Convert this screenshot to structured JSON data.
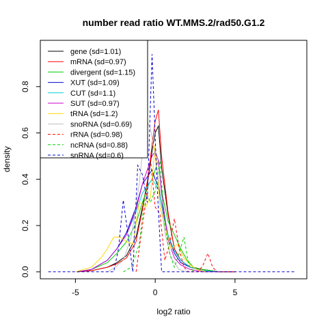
{
  "chart_data": {
    "type": "line",
    "title": "number read ratio WT.MMS.2/rad50.G1.2",
    "xlabel": "log2 ratio",
    "ylabel": "density",
    "xlim": [
      -7.2,
      9.5
    ],
    "ylim": [
      -0.03,
      1.0
    ],
    "xticks": [
      -5,
      0,
      5
    ],
    "yticks": [
      0.0,
      0.2,
      0.4,
      0.6,
      0.8
    ],
    "xtick_labels": [
      "-5",
      "0",
      "5"
    ],
    "ytick_labels": [
      "0.0",
      "0.2",
      "0.4",
      "0.6",
      "0.8"
    ],
    "grid": false,
    "legend_position": "top-left",
    "series": [
      {
        "name": "gene (sd=1.01)",
        "color": "#000000",
        "dash": "solid",
        "x": [
          -4.9,
          -4.0,
          -3.0,
          -2.4,
          -1.8,
          -1.2,
          -0.8,
          -0.4,
          -0.2,
          0.0,
          0.2,
          0.4,
          0.8,
          1.2,
          1.6,
          2.2,
          3.0,
          4.0,
          5.0
        ],
        "y": [
          0.0,
          0.005,
          0.02,
          0.04,
          0.07,
          0.15,
          0.28,
          0.42,
          0.52,
          0.6,
          0.63,
          0.45,
          0.25,
          0.1,
          0.05,
          0.02,
          0.01,
          0.0,
          0.0
        ]
      },
      {
        "name": "mRNA (sd=0.97)",
        "color": "#ff0000",
        "dash": "solid",
        "x": [
          -4.9,
          -4.0,
          -3.0,
          -2.4,
          -1.8,
          -1.2,
          -0.8,
          -0.4,
          -0.2,
          0.0,
          0.2,
          0.4,
          0.8,
          1.2,
          1.6,
          2.2,
          3.0,
          4.0,
          5.0
        ],
        "y": [
          0.0,
          0.005,
          0.02,
          0.035,
          0.06,
          0.13,
          0.27,
          0.43,
          0.55,
          0.65,
          0.7,
          0.5,
          0.26,
          0.1,
          0.05,
          0.02,
          0.01,
          0.0,
          0.0
        ]
      },
      {
        "name": "divergent (sd=1.15)",
        "color": "#00cd00",
        "dash": "solid",
        "x": [
          -4.9,
          -4.0,
          -3.0,
          -2.4,
          -1.8,
          -1.2,
          -0.8,
          -0.4,
          -0.2,
          0.0,
          0.2,
          0.4,
          0.8,
          1.2,
          1.6,
          2.0,
          2.4,
          3.0,
          4.0
        ],
        "y": [
          0.0,
          0.01,
          0.04,
          0.08,
          0.13,
          0.21,
          0.3,
          0.38,
          0.4,
          0.44,
          0.48,
          0.35,
          0.22,
          0.16,
          0.1,
          0.05,
          0.02,
          0.01,
          0.0
        ]
      },
      {
        "name": "XUT (sd=1.09)",
        "color": "#0000cd",
        "dash": "solid",
        "x": [
          -4.9,
          -4.0,
          -3.0,
          -2.4,
          -1.8,
          -1.2,
          -0.8,
          -0.4,
          -0.2,
          0.0,
          0.2,
          0.4,
          0.8,
          1.2,
          1.6,
          2.2,
          3.0,
          4.0
        ],
        "y": [
          0.0,
          0.01,
          0.05,
          0.1,
          0.17,
          0.28,
          0.38,
          0.42,
          0.44,
          0.4,
          0.37,
          0.3,
          0.16,
          0.08,
          0.04,
          0.02,
          0.005,
          0.0
        ]
      },
      {
        "name": "CUT (sd=1.1)",
        "color": "#00cdcd",
        "dash": "solid",
        "x": [
          -4.9,
          -4.0,
          -3.0,
          -2.4,
          -1.8,
          -1.2,
          -0.8,
          -0.4,
          -0.2,
          0.0,
          0.2,
          0.4,
          0.8,
          1.2,
          1.6,
          2.2,
          3.0,
          4.0
        ],
        "y": [
          0.0,
          0.01,
          0.05,
          0.1,
          0.16,
          0.26,
          0.34,
          0.38,
          0.4,
          0.38,
          0.36,
          0.28,
          0.16,
          0.09,
          0.05,
          0.02,
          0.005,
          0.0
        ]
      },
      {
        "name": "SUT (sd=0.97)",
        "color": "#cd00cd",
        "dash": "solid",
        "x": [
          -4.9,
          -4.0,
          -3.0,
          -2.4,
          -1.8,
          -1.2,
          -0.8,
          -0.4,
          -0.2,
          0.0,
          0.2,
          0.4,
          0.8,
          1.2,
          1.6,
          2.2,
          3.0,
          4.0
        ],
        "y": [
          0.0,
          0.01,
          0.05,
          0.1,
          0.16,
          0.27,
          0.38,
          0.46,
          0.5,
          0.52,
          0.48,
          0.34,
          0.14,
          0.06,
          0.03,
          0.01,
          0.0,
          0.0
        ]
      },
      {
        "name": "tRNA (sd=1.2)",
        "color": "#ffd700",
        "dash": "solid",
        "x": [
          -5.0,
          -4.0,
          -3.4,
          -3.0,
          -2.6,
          -2.2,
          -1.8,
          -1.4,
          -1.0,
          -0.6,
          -0.3,
          0.0,
          0.3,
          0.6,
          1.0,
          1.4,
          1.8,
          2.2,
          2.6,
          3.2
        ],
        "y": [
          0.0,
          0.02,
          0.06,
          0.1,
          0.15,
          0.15,
          0.13,
          0.12,
          0.3,
          0.28,
          0.32,
          0.55,
          0.28,
          0.2,
          0.1,
          0.12,
          0.06,
          0.03,
          0.01,
          0.0
        ]
      },
      {
        "name": "snoRNA (sd=0.69)",
        "color": "#bebebe",
        "dash": "solid",
        "x": [
          -3.0,
          -2.5,
          -2.0,
          -1.5,
          -1.0,
          -0.6,
          -0.3,
          0.0,
          0.3,
          0.6,
          1.0,
          1.5,
          2.0
        ],
        "y": [
          0.0,
          0.02,
          0.05,
          0.15,
          0.38,
          0.66,
          0.62,
          0.5,
          0.35,
          0.17,
          0.06,
          0.01,
          0.0
        ]
      },
      {
        "name": "rRNA (sd=0.98)",
        "color": "#ff0000",
        "dash": "dashed",
        "x": [
          -1.2,
          -0.9,
          -0.6,
          -0.3,
          0.0,
          0.3,
          0.6,
          0.9,
          1.2,
          1.5,
          1.8,
          2.1,
          2.4,
          2.7,
          3.0,
          3.3,
          3.6,
          3.9
        ],
        "y": [
          0.0,
          0.15,
          0.3,
          0.49,
          0.28,
          0.25,
          0.05,
          0.12,
          0.23,
          0.1,
          0.02,
          0.0,
          0.0,
          0.0,
          0.03,
          0.08,
          0.02,
          0.0
        ]
      },
      {
        "name": "ncRNA (sd=0.88)",
        "color": "#00cd00",
        "dash": "dashed",
        "x": [
          -2.0,
          -1.5,
          -1.0,
          -0.6,
          -0.3,
          0.0,
          0.3,
          0.6,
          0.9,
          1.2,
          1.5,
          1.8,
          2.1,
          2.4
        ],
        "y": [
          0.0,
          0.02,
          0.12,
          0.35,
          0.3,
          0.35,
          0.48,
          0.2,
          0.08,
          0.02,
          0.08,
          0.15,
          0.03,
          0.0
        ]
      },
      {
        "name": "snRNA (sd=0.6)",
        "color": "#0000cd",
        "dash": "dashed",
        "x": [
          -6.7,
          -3.0,
          -2.6,
          -2.3,
          -2.0,
          -1.7,
          -1.4,
          -1.1,
          -0.8,
          -0.5,
          -0.2,
          0.1,
          0.4,
          0.7,
          1.0,
          3.0,
          8.8
        ],
        "y": [
          0.0,
          0.0,
          0.0,
          0.1,
          0.31,
          0.16,
          0.0,
          0.46,
          0.42,
          0.3,
          0.94,
          0.4,
          0.0,
          0.0,
          0.0,
          0.0,
          0.0
        ]
      }
    ]
  }
}
